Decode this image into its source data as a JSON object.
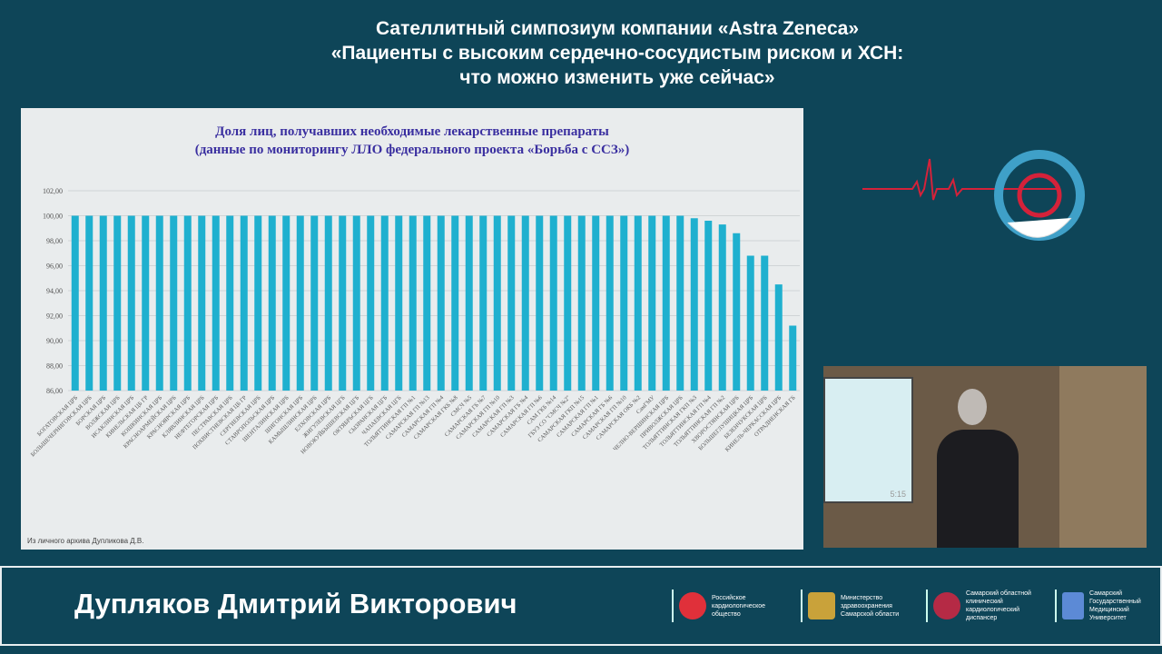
{
  "header": {
    "line1": "Сателлитный симпозиум компании «Astra Zeneca»",
    "line2": "«Пациенты с высоким сердечно-сосудистым риском и ХСН:",
    "line3": "что можно изменить уже сейчас»"
  },
  "slide": {
    "source": "Из личного архива Дупликова Д.В."
  },
  "chart_data": {
    "type": "bar",
    "title": "Доля лиц, получавших необходимые лекарственные препараты",
    "subtitle": "(данные по мониторингу ЛЛО федерального проекта «Борьба с ССЗ»)",
    "xlabel": "",
    "ylabel": "",
    "ylim": [
      86,
      102
    ],
    "yticks": [
      "86,00",
      "88,00",
      "90,00",
      "92,00",
      "94,00",
      "96,00",
      "98,00",
      "100,00",
      "102,00"
    ],
    "grid": true,
    "color": "#1fb0cf",
    "categories": [
      "БОГАТОВСКАЯ ЦРБ",
      "БОЛЬШЕЧЕРНИГОВСКАЯ ЦРБ",
      "БОРСКАЯ ЦРБ",
      "ВОЛЖСКАЯ ЦРБ",
      "ИСАКЛИНСКАЯ ЦРБ",
      "КИНЕЛЬСКАЯ ЦБ ГР",
      "КОШКИНСКАЯ ЦРБ",
      "КРАСНОАРМЕЙСКАЯ ЦРБ",
      "КРАСНОЯРСКАЯ ЦРБ",
      "КЛЯВЛИНСКАЯ ЦРБ",
      "НЕФТЕГОРСКАЯ ЦРБ",
      "ПЕСТРАВСКАЯ ЦРБ",
      "ПОХВИСТНЕВСКАЯ ЦБ ГР",
      "СЕРГИЕВСКАЯ ЦРБ",
      "СТАВРОПОЛЬСКАЯ ЦРБ",
      "ШЕНТАЛИНСКАЯ ЦРБ",
      "ШИГОНСКАЯ ЦРБ",
      "КАМЫШЛИНСКАЯ ЦРБ",
      "ЕЛХОВСКАЯ ЦРБ",
      "ЖИГУЛЕВСКАЯ ЦГБ",
      "НОВОКУЙБЫШЕВСКАЯ ЦГБ",
      "ОКТЯБРЬСКАЯ ЦГБ",
      "СЫЗРАНСКАЯ ЦГБ",
      "ЧАПАЕВСКАЯ ЦГБ",
      "ТОЛЬЯТТИНСКАЯ ГП №1",
      "САМАРСКАЯ ГП №13",
      "САМАРСКАЯ ГП №4",
      "САМАРСКАЯ ГКБ №8",
      "СМСЧ №5",
      "САМАРСКАЯ ГБ №7",
      "САМАРСКАЯ ГП №10",
      "САМАРСКАЯ ГП №3",
      "САМАРСКАЯ ГБ №4",
      "САМАРСКАЯ ГП №6",
      "САМ ГКБ №14",
      "ГБУЗ СО \"СМСЧ №2\"",
      "САМАРСКАЯ ГКП №15",
      "САМАРСКАЯ ГП №1",
      "САМАРСКАЯ ГБ №6",
      "САМАРСКАЯ ГП №10",
      "САМАРСКАЯ ОКБ №2",
      "СамГМУ",
      "ЧЕЛНО-ВЕРШИНСКАЯ ЦРБ",
      "ПРИВОЛЖСКАЯ ЦРБ",
      "ТОЛЬЯТТИНСКАЯ ГКП №3",
      "ТОЛЬЯТТИНСКАЯ ГП №4",
      "ТОЛЬЯТТИНСКАЯ ГП №2",
      "ХВОРОСТЯНСКАЯ ЦРБ",
      "БОЛЬШЕГЛУШИЦКАЯ ЦРБ",
      "БЕЗЕНЧУКСКАЯ ЦРБ",
      "КИНЕЛЬ-ЧЕРКАССКАЯ ЦРБ",
      "ОТРАДНЕНСКАЯ ГБ"
    ],
    "values": [
      100,
      100,
      100,
      100,
      100,
      100,
      100,
      100,
      100,
      100,
      100,
      100,
      100,
      100,
      100,
      100,
      100,
      100,
      100,
      100,
      100,
      100,
      100,
      100,
      100,
      100,
      100,
      100,
      100,
      100,
      100,
      100,
      100,
      100,
      100,
      100,
      100,
      100,
      100,
      100,
      100,
      100,
      100,
      100,
      99.8,
      99.6,
      99.3,
      98.6,
      96.8,
      96.8,
      94.5,
      91.2
    ]
  },
  "video": {
    "timer": "5:15"
  },
  "banner": {
    "speaker": "Дупляков Дмитрий Викторович",
    "orgs": [
      {
        "name": "Российское кардиологическое общество",
        "color": "#e0303a"
      },
      {
        "name": "Министерство здравоохранения Самарской области",
        "color": "#c9a23a"
      },
      {
        "name": "Самарский областной клинический кардиологический диспансер",
        "color": "#b52a45"
      },
      {
        "name": "Самарский Государственный Медицинский Университет",
        "color": "#5c8ad6"
      }
    ]
  }
}
